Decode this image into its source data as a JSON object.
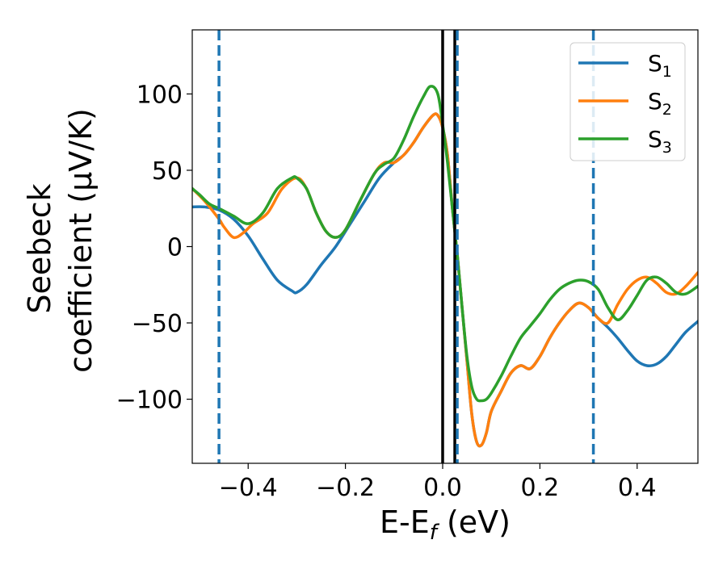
{
  "chart_data": {
    "type": "line",
    "title": "",
    "xlabel": "E-E_f (eV)",
    "xlabel_parts": {
      "main": "E-E",
      "sub": "f",
      "unit": " (eV)"
    },
    "ylabel_line1": "Seebeck",
    "ylabel_line2": "coefficient  (μV/K)",
    "xlim": [
      -0.515,
      0.525
    ],
    "ylim": [
      -142,
      142
    ],
    "xticks": [
      -0.4,
      -0.2,
      0.0,
      0.2,
      0.4
    ],
    "xtick_labels": [
      "−0.4",
      "−0.2",
      "0.0",
      "0.2",
      "0.4"
    ],
    "yticks": [
      100,
      50,
      0,
      -50,
      -100
    ],
    "ytick_labels": [
      "100",
      "50",
      "0",
      "−50",
      "−100"
    ],
    "legend_position": "top-right",
    "vlines": [
      {
        "name": "fermi-level-line",
        "x": 0.0,
        "color": "#000000",
        "style": "solid"
      },
      {
        "name": "reference-line",
        "x": 0.025,
        "color": "#000000",
        "style": "solid"
      },
      {
        "name": "dashed-line-1",
        "x": -0.46,
        "color": "#1f77b4",
        "style": "dashed"
      },
      {
        "name": "dashed-line-2",
        "x": 0.03,
        "color": "#1f77b4",
        "style": "dashed"
      },
      {
        "name": "dashed-line-3",
        "x": 0.31,
        "color": "#1f77b4",
        "style": "dashed"
      }
    ],
    "series": [
      {
        "name": "S1",
        "label_main": "S",
        "label_sub": "1",
        "color": "#1f77b4",
        "x": [
          -0.515,
          -0.49,
          -0.46,
          -0.43,
          -0.4,
          -0.37,
          -0.34,
          -0.31,
          -0.3,
          -0.28,
          -0.25,
          -0.22,
          -0.19,
          -0.16,
          -0.13,
          -0.1,
          -0.08,
          -0.06,
          -0.04,
          -0.02,
          -0.01,
          0.0,
          0.01,
          0.02,
          0.03,
          0.04,
          0.05,
          0.06,
          0.07,
          0.08,
          0.09,
          0.1,
          0.12,
          0.14,
          0.16,
          0.18,
          0.2,
          0.22,
          0.24,
          0.26,
          0.28,
          0.3,
          0.32,
          0.34,
          0.36,
          0.38,
          0.4,
          0.42,
          0.44,
          0.46,
          0.48,
          0.5,
          0.525
        ],
        "y": [
          26,
          26,
          24,
          18,
          7,
          -8,
          -22,
          -29,
          -30,
          -25,
          -12,
          0,
          15,
          30,
          45,
          55,
          60,
          68,
          78,
          86,
          86,
          78,
          60,
          25,
          -5,
          -40,
          -75,
          -110,
          -128,
          -130,
          -122,
          -108,
          -95,
          -83,
          -78,
          -80,
          -72,
          -60,
          -50,
          -42,
          -37,
          -40,
          -47,
          -53,
          -60,
          -68,
          -75,
          -78,
          -77,
          -72,
          -64,
          -56,
          -49
        ]
      },
      {
        "name": "S2",
        "label_main": "S",
        "label_sub": "2",
        "color": "#ff7f0e",
        "x": [
          -0.515,
          -0.49,
          -0.46,
          -0.45,
          -0.43,
          -0.41,
          -0.39,
          -0.36,
          -0.33,
          -0.3,
          -0.28,
          -0.26,
          -0.24,
          -0.22,
          -0.2,
          -0.17,
          -0.14,
          -0.12,
          -0.1,
          -0.08,
          -0.06,
          -0.04,
          -0.02,
          -0.01,
          0.0,
          0.01,
          0.02,
          0.03,
          0.04,
          0.05,
          0.06,
          0.07,
          0.08,
          0.09,
          0.1,
          0.12,
          0.14,
          0.16,
          0.18,
          0.2,
          0.22,
          0.24,
          0.26,
          0.28,
          0.3,
          0.32,
          0.34,
          0.36,
          0.38,
          0.4,
          0.42,
          0.44,
          0.46,
          0.48,
          0.5,
          0.525
        ],
        "y": [
          38,
          30,
          18,
          13,
          6,
          9,
          15,
          22,
          38,
          45,
          38,
          22,
          10,
          6,
          11,
          30,
          48,
          55,
          55,
          60,
          68,
          78,
          86,
          86,
          78,
          60,
          25,
          -5,
          -40,
          -75,
          -110,
          -128,
          -130,
          -122,
          -108,
          -95,
          -83,
          -78,
          -80,
          -72,
          -60,
          -50,
          -42,
          -37,
          -40,
          -47,
          -50,
          -38,
          -28,
          -22,
          -20,
          -24,
          -30,
          -31,
          -26,
          -17
        ]
      },
      {
        "name": "S3",
        "label_main": "S",
        "label_sub": "3",
        "color": "#2ca02c",
        "x": [
          -0.515,
          -0.5,
          -0.48,
          -0.46,
          -0.43,
          -0.4,
          -0.37,
          -0.34,
          -0.31,
          -0.3,
          -0.28,
          -0.26,
          -0.24,
          -0.22,
          -0.2,
          -0.17,
          -0.14,
          -0.12,
          -0.1,
          -0.08,
          -0.06,
          -0.04,
          -0.025,
          -0.01,
          0.0,
          0.01,
          0.02,
          0.03,
          0.04,
          0.05,
          0.06,
          0.07,
          0.08,
          0.09,
          0.1,
          0.12,
          0.14,
          0.16,
          0.18,
          0.2,
          0.22,
          0.24,
          0.26,
          0.28,
          0.3,
          0.32,
          0.34,
          0.36,
          0.38,
          0.4,
          0.42,
          0.44,
          0.46,
          0.48,
          0.5,
          0.525
        ],
        "y": [
          38,
          34,
          28,
          25,
          20,
          15,
          22,
          38,
          45,
          45,
          38,
          22,
          10,
          6,
          11,
          30,
          48,
          54,
          58,
          70,
          85,
          98,
          105,
          100,
          80,
          55,
          25,
          -5,
          -40,
          -72,
          -92,
          -100,
          -101,
          -100,
          -96,
          -85,
          -72,
          -60,
          -52,
          -44,
          -35,
          -28,
          -24,
          -22,
          -23,
          -28,
          -40,
          -48,
          -42,
          -32,
          -22,
          -20,
          -24,
          -30,
          -31,
          -26
        ]
      }
    ]
  }
}
